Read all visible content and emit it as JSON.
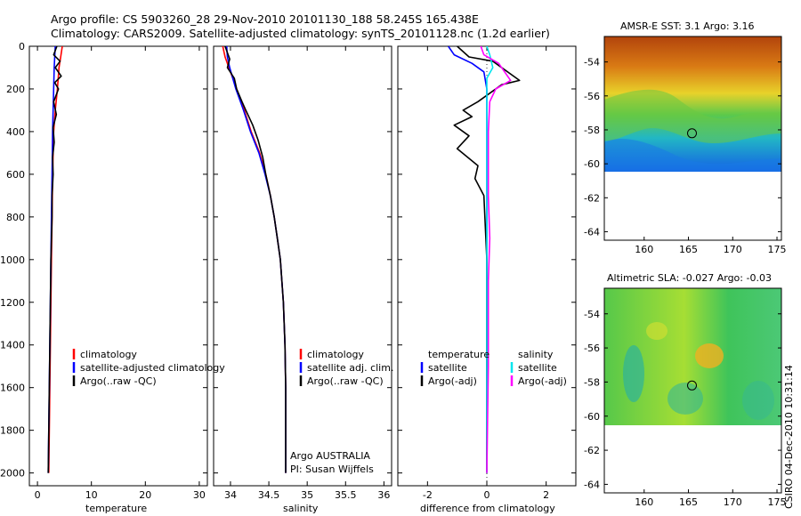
{
  "header": {
    "line1": "Argo profile: CS 5903260_28 29-Nov-2010 20101130_188 58.245S 165.438E",
    "line2": "Climatology: CARS2009. Satellite-adjusted climatology: synTS_20101128.nc (1.2d earlier)"
  },
  "colors": {
    "climatology": "#ff0000",
    "satellite": "#0000ff",
    "argo": "#000000",
    "sal_satellite": "#00e5ee",
    "sal_argo": "#ff00ff"
  },
  "chart_data": [
    {
      "type": "line",
      "id": "temperature",
      "xlabel": "temperature",
      "xlim": [
        -1.5,
        31.5
      ],
      "ylim": [
        2060,
        0
      ],
      "xticks": [
        0,
        10,
        20,
        30
      ],
      "yticks": [
        0,
        200,
        400,
        600,
        800,
        1000,
        1200,
        1400,
        1600,
        1800,
        2000
      ],
      "legend": [
        "climatology",
        "satellite-adjusted climatology",
        "Argo(..raw -QC)"
      ],
      "series": [
        {
          "name": "climatology",
          "color": "#ff0000",
          "points": [
            [
              4.6,
              0
            ],
            [
              4.3,
              50
            ],
            [
              4.0,
              100
            ],
            [
              3.7,
              200
            ],
            [
              3.3,
              300
            ],
            [
              3.0,
              400
            ],
            [
              2.8,
              600
            ],
            [
              2.7,
              800
            ],
            [
              2.6,
              1000
            ],
            [
              2.5,
              1200
            ],
            [
              2.4,
              1400
            ],
            [
              2.3,
              1600
            ],
            [
              2.2,
              1800
            ],
            [
              2.1,
              2000
            ]
          ]
        },
        {
          "name": "satellite-adjusted climatology",
          "color": "#0000ff",
          "points": [
            [
              3.3,
              0
            ],
            [
              3.2,
              50
            ],
            [
              3.1,
              100
            ],
            [
              3.0,
              200
            ],
            [
              2.9,
              300
            ],
            [
              2.8,
              400
            ],
            [
              2.7,
              600
            ],
            [
              2.6,
              800
            ],
            [
              2.5,
              1000
            ],
            [
              2.4,
              1200
            ],
            [
              2.3,
              1400
            ],
            [
              2.2,
              1600
            ],
            [
              2.1,
              1800
            ],
            [
              2.0,
              2000
            ]
          ]
        },
        {
          "name": "Argo(..raw -QC)",
          "color": "#000000",
          "points": [
            [
              3.6,
              0
            ],
            [
              3.0,
              40
            ],
            [
              4.2,
              70
            ],
            [
              3.3,
              100
            ],
            [
              4.4,
              140
            ],
            [
              3.2,
              170
            ],
            [
              3.9,
              200
            ],
            [
              3.0,
              260
            ],
            [
              3.5,
              320
            ],
            [
              2.9,
              380
            ],
            [
              3.1,
              450
            ],
            [
              2.8,
              520
            ],
            [
              2.9,
              600
            ],
            [
              2.7,
              700
            ],
            [
              2.7,
              800
            ],
            [
              2.5,
              1000
            ],
            [
              2.4,
              1200
            ],
            [
              2.3,
              1400
            ],
            [
              2.2,
              1600
            ],
            [
              2.1,
              1800
            ],
            [
              2.0,
              2000
            ]
          ]
        }
      ]
    },
    {
      "type": "line",
      "id": "salinity",
      "xlabel": "salinity",
      "xlim": [
        33.78,
        36.1
      ],
      "ylim": [
        2060,
        0
      ],
      "xticks": [
        34,
        34.5,
        35,
        35.5,
        36
      ],
      "xticklabels": [
        "34",
        "34.5",
        "35",
        "35.5",
        "36"
      ],
      "legend": [
        "climatology",
        "satellite adj. clim.",
        "Argo(..raw -QC)"
      ],
      "annotations": [
        "Argo AUSTRALIA",
        "PI: Susan Wijffels"
      ],
      "series": [
        {
          "name": "climatology",
          "color": "#ff0000",
          "points": [
            [
              33.9,
              0
            ],
            [
              33.93,
              50
            ],
            [
              33.98,
              100
            ],
            [
              34.08,
              200
            ],
            [
              34.18,
              300
            ],
            [
              34.27,
              400
            ],
            [
              34.38,
              500
            ],
            [
              34.46,
              600
            ],
            [
              34.52,
              700
            ],
            [
              34.57,
              800
            ],
            [
              34.61,
              900
            ],
            [
              34.65,
              1000
            ],
            [
              34.69,
              1200
            ],
            [
              34.71,
              1400
            ],
            [
              34.72,
              1600
            ],
            [
              34.72,
              1800
            ],
            [
              34.72,
              2000
            ]
          ]
        },
        {
          "name": "satellite adj. clim.",
          "color": "#0000ff",
          "points": [
            [
              33.95,
              0
            ],
            [
              33.96,
              50
            ],
            [
              33.99,
              100
            ],
            [
              34.07,
              200
            ],
            [
              34.17,
              300
            ],
            [
              34.26,
              400
            ],
            [
              34.37,
              500
            ],
            [
              34.45,
              600
            ],
            [
              34.52,
              700
            ],
            [
              34.57,
              800
            ],
            [
              34.61,
              900
            ],
            [
              34.65,
              1000
            ],
            [
              34.69,
              1200
            ],
            [
              34.71,
              1400
            ],
            [
              34.72,
              1600
            ],
            [
              34.72,
              1800
            ],
            [
              34.72,
              2000
            ]
          ]
        },
        {
          "name": "Argo(..raw -QC)",
          "color": "#000000",
          "points": [
            [
              33.93,
              0
            ],
            [
              33.99,
              60
            ],
            [
              33.96,
              100
            ],
            [
              34.05,
              150
            ],
            [
              34.08,
              200
            ],
            [
              34.15,
              260
            ],
            [
              34.2,
              300
            ],
            [
              34.29,
              370
            ],
            [
              34.36,
              440
            ],
            [
              34.42,
              520
            ],
            [
              34.46,
              600
            ],
            [
              34.52,
              700
            ],
            [
              34.57,
              800
            ],
            [
              34.61,
              900
            ],
            [
              34.65,
              1000
            ],
            [
              34.69,
              1200
            ],
            [
              34.71,
              1400
            ],
            [
              34.72,
              1600
            ],
            [
              34.72,
              1800
            ],
            [
              34.72,
              2000
            ]
          ]
        }
      ]
    },
    {
      "type": "line",
      "id": "difference",
      "xlabel": "difference from climatology",
      "xlim": [
        -3,
        3
      ],
      "ylim": [
        2060,
        0
      ],
      "xticks": [
        -2,
        0,
        2
      ],
      "legend_temperature": {
        "title": "temperature",
        "items": [
          "satellite",
          "Argo(-adj)"
        ]
      },
      "legend_salinity": {
        "title": "salinity",
        "items": [
          "satellite",
          "Argo(-adj)"
        ]
      },
      "series": [
        {
          "name": "temperature satellite",
          "color": "#0000ff",
          "points": [
            [
              -1.3,
              0
            ],
            [
              -1.1,
              40
            ],
            [
              -0.5,
              80
            ],
            [
              -0.1,
              120
            ],
            [
              0,
              200
            ],
            [
              0,
              2000
            ]
          ]
        },
        {
          "name": "temperature Argo(-adj)",
          "color": "#000000",
          "points": [
            [
              -1.0,
              0
            ],
            [
              -0.6,
              50
            ],
            [
              0.2,
              70
            ],
            [
              1.1,
              160
            ],
            [
              0.5,
              180
            ],
            [
              -0.3,
              260
            ],
            [
              -0.8,
              300
            ],
            [
              -0.5,
              330
            ],
            [
              -1.1,
              370
            ],
            [
              -0.6,
              420
            ],
            [
              -1.0,
              480
            ],
            [
              -0.3,
              560
            ],
            [
              -0.4,
              620
            ],
            [
              -0.1,
              700
            ],
            [
              0,
              1000
            ],
            [
              0,
              2000
            ]
          ]
        },
        {
          "name": "salinity satellite",
          "color": "#00e5ee",
          "points": [
            [
              0,
              0
            ],
            [
              0.1,
              40
            ],
            [
              0.2,
              100
            ],
            [
              0,
              150
            ],
            [
              0,
              2000
            ]
          ]
        },
        {
          "name": "salinity Argo(-adj)",
          "color": "#ff00ff",
          "points": [
            [
              -0.2,
              0
            ],
            [
              -0.1,
              40
            ],
            [
              0.4,
              80
            ],
            [
              0.8,
              160
            ],
            [
              0.3,
              200
            ],
            [
              0.1,
              260
            ],
            [
              0.05,
              400
            ],
            [
              0.05,
              700
            ],
            [
              0.1,
              900
            ],
            [
              0.05,
              1100
            ],
            [
              0.05,
              1500
            ],
            [
              0,
              2000
            ]
          ]
        }
      ]
    },
    {
      "type": "heatmap",
      "id": "sst_map",
      "title": "AMSR-E SST: 3.1 Argo: 3.16",
      "xlim": [
        155.5,
        175.5
      ],
      "ylim": [
        -64.5,
        -52.5
      ],
      "xticks": [
        160,
        165,
        170,
        175
      ],
      "yticks": [
        -54,
        -56,
        -58,
        -60,
        -62,
        -64
      ],
      "marker_lon": 165.4,
      "marker_lat": -58.2
    },
    {
      "type": "heatmap",
      "id": "sla_map",
      "title": "Altimetric SLA: -0.027 Argo: -0.03",
      "xlim": [
        155.5,
        175.5
      ],
      "ylim": [
        -64.5,
        -52.5
      ],
      "xticks": [
        160,
        165,
        170,
        175
      ],
      "yticks": [
        -54,
        -56,
        -58,
        -60,
        -62,
        -64
      ],
      "marker_lon": 165.4,
      "marker_lat": -58.2
    }
  ],
  "stamp": "CSIRO 04-Dec-2010 10:31:14"
}
